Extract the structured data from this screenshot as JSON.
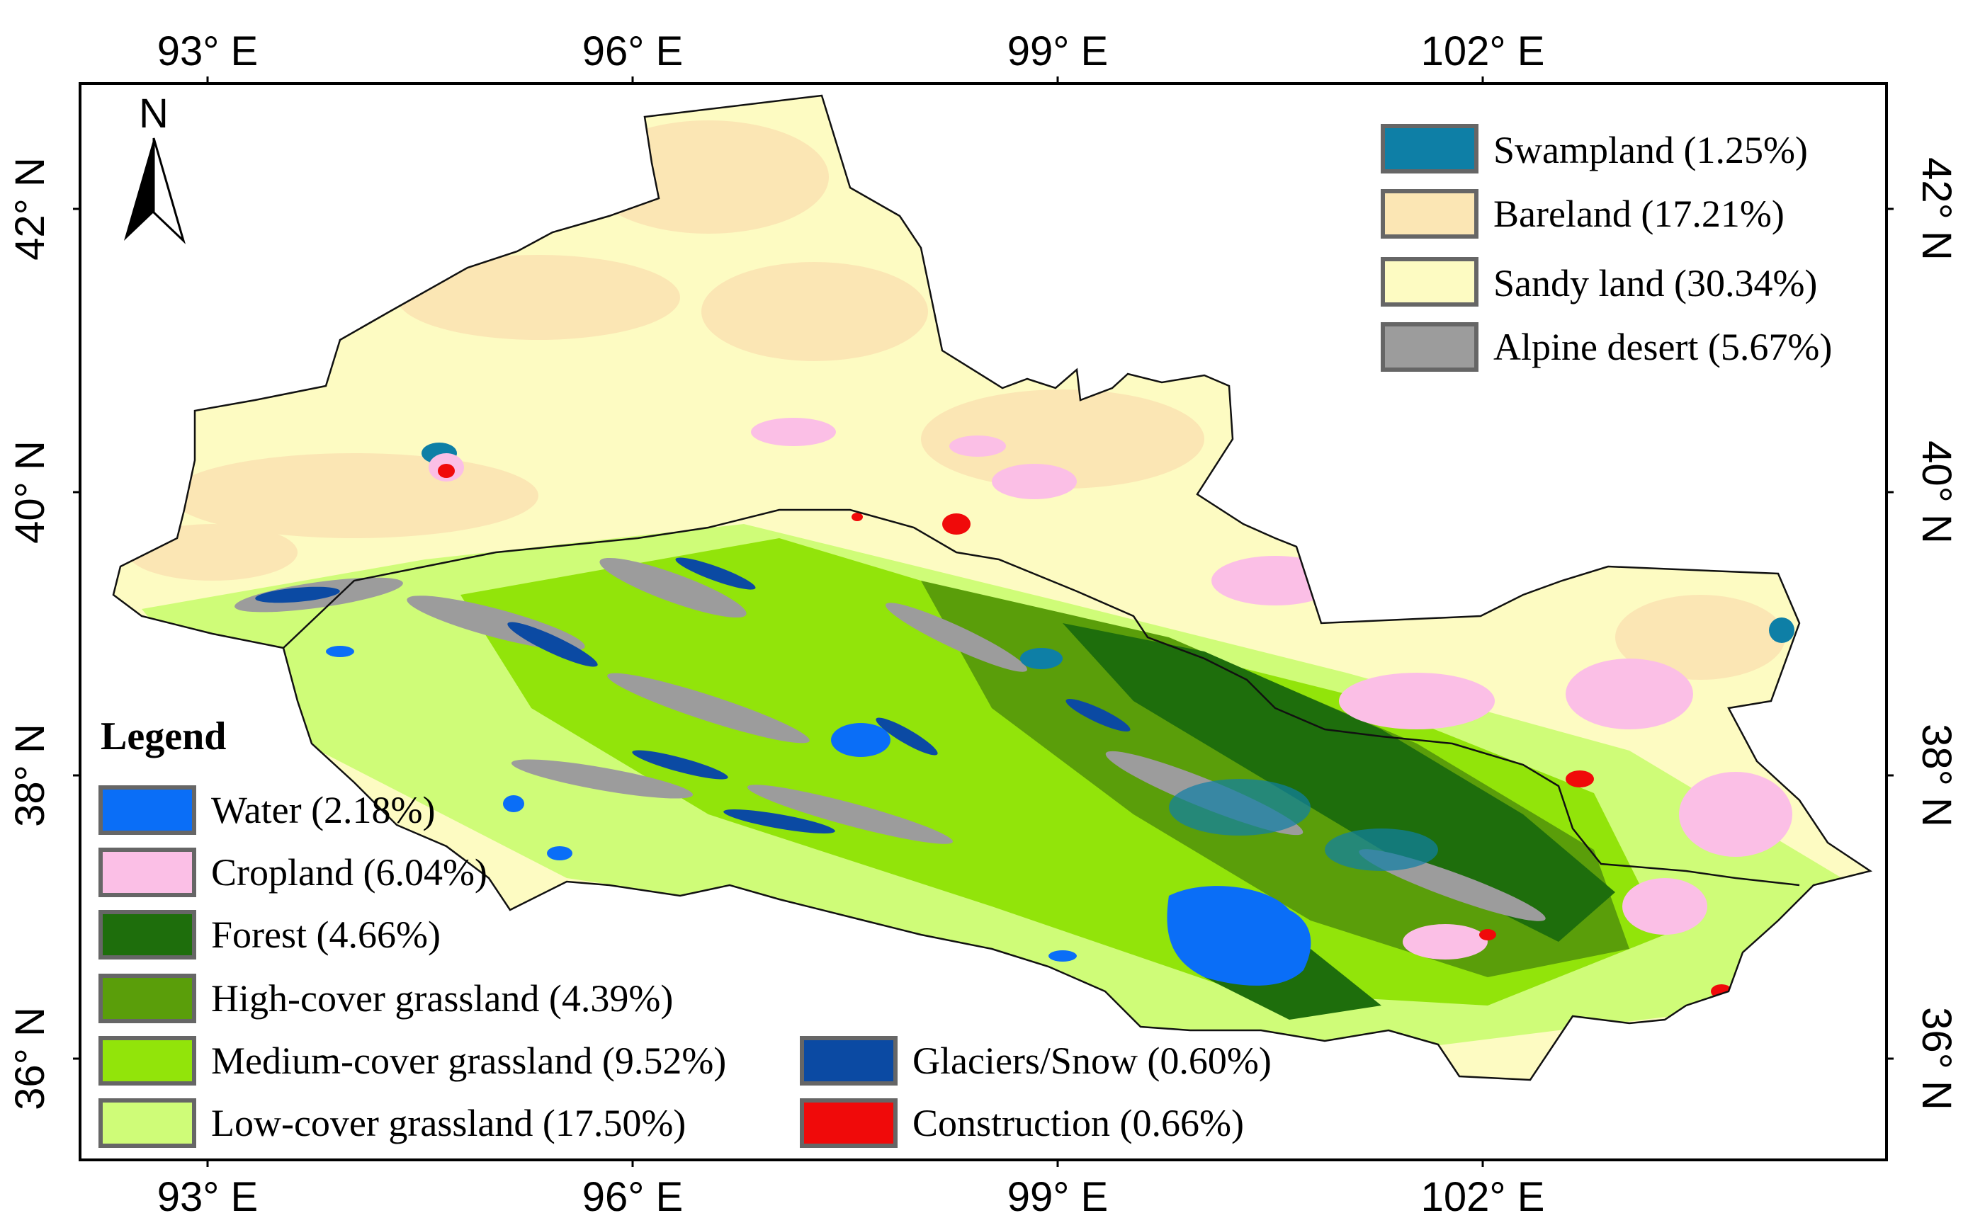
{
  "map": {
    "longitude_ticks": [
      "93° E",
      "96° E",
      "99° E",
      "102° E"
    ],
    "latitude_ticks": [
      "42° N",
      "40° N",
      "38° N",
      "36° N"
    ],
    "north_arrow": {
      "label": "N",
      "icon": "north-arrow-icon"
    },
    "legend_title": "Legend",
    "legend_top_right": [
      {
        "label": "Swampland (1.25%)",
        "color": "#0e7fa6"
      },
      {
        "label": "Bareland (17.21%)",
        "color": "#fbe6b4"
      },
      {
        "label": "Sandy land (30.34%)",
        "color": "#fdfbc2"
      },
      {
        "label": "Alpine desert (5.67%)",
        "color": "#9c9c9c"
      }
    ],
    "legend_bottom_left": [
      {
        "label": "Water (2.18%)",
        "color": "#0a6ef7"
      },
      {
        "label": "Cropland (6.04%)",
        "color": "#fbbfe6"
      },
      {
        "label": "Forest (4.66%)",
        "color": "#1e6e0c"
      },
      {
        "label": "High-cover grassland (4.39%)",
        "color": "#5a9e0a"
      },
      {
        "label": "Medium-cover grassland (9.52%)",
        "color": "#92e40a"
      },
      {
        "label": "Low-cover grassland (17.50%)",
        "color": "#cffc78"
      }
    ],
    "legend_bottom_middle": [
      {
        "label": "Glaciers/Snow (0.60%)",
        "color": "#0b4aa3"
      },
      {
        "label": "Construction (0.66%)",
        "color": "#f00a0a"
      }
    ]
  }
}
